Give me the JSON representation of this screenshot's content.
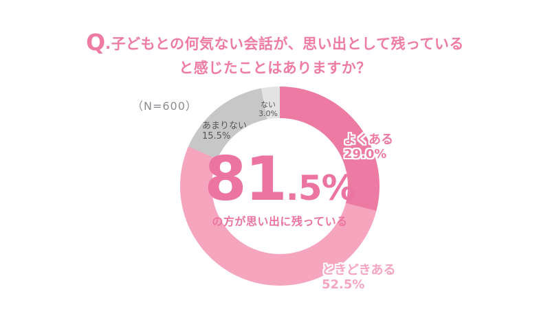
{
  "header": {
    "q_prefix": "Q",
    "title_line1": ".子どもとの何気ない会話が、思い出として残っている",
    "title_line2": "と感じたことはありますか？"
  },
  "sample_size_label": "（N=600）",
  "colors": {
    "title_pink": "#ee7ba3",
    "center_pink": "#ec74a1",
    "label_dark_gray": "#55565a",
    "n_label_gray": "#8a8b90",
    "background": "#ffffff"
  },
  "center": {
    "big_value": "81",
    "small_value": ".5%",
    "caption": "の方が思い出に残っている"
  },
  "chart_data": {
    "type": "pie",
    "subtype": "donut",
    "title": "Q.子どもとの何気ない会話が、思い出として残っていると感じたことはありますか？",
    "sample_size_label": "（N=600）",
    "sample_size": 600,
    "unit": "%",
    "start_angle_deg": 0,
    "direction": "clockwise",
    "donut_inner_ratio": 0.68,
    "segments": [
      {
        "label": "よくある",
        "value": 29.0,
        "value_label": "29.0%",
        "color": "#ed7aa2",
        "label_placement": "outside-right"
      },
      {
        "label": "ときどきある",
        "value": 52.5,
        "value_label": "52.5%",
        "color": "#f6a5be",
        "label_placement": "outside-bottom-right"
      },
      {
        "label": "あまりない",
        "value": 15.5,
        "value_label": "15.5%",
        "color": "#c7c7c7",
        "label_placement": "inside"
      },
      {
        "label": "ない",
        "value": 3.0,
        "value_label": "3.0%",
        "color": "#e3e3e3",
        "label_placement": "inside"
      }
    ],
    "highlight_total": {
      "value": 81.5,
      "label": "81.5%",
      "caption": "の方が思い出に残っている"
    }
  }
}
